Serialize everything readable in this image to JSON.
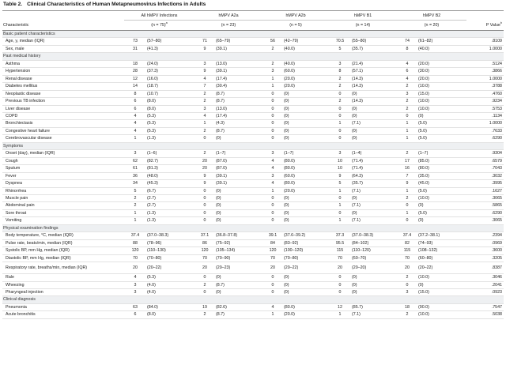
{
  "title": {
    "label": "Table 2.",
    "text": "Clinical Characteristics of Human Metapneumovirus Infections in Adults"
  },
  "groups": [
    "All hMPV Infections",
    "hMPV A2a",
    "hMPV A2b",
    "hMPV B1",
    "hMPV B2"
  ],
  "header": {
    "characteristic": "Characteristic",
    "n_all": "(n = 75)",
    "n_all_sup": "a",
    "n_a2a": "(n = 23)",
    "n_a2b": "(n = 5)",
    "n_b1": "(n = 14)",
    "n_b2": "(n = 20)",
    "pvalue": "P Value",
    "pvalue_sup": "b"
  },
  "rows": [
    {
      "section": "Basic patient characteristics"
    },
    {
      "name": "Age, y, median (IQR)",
      "v": [
        "73",
        "(57–80)",
        "71",
        "(65–79)",
        "56",
        "(42–79)",
        "70.5",
        "(55–80)",
        "74",
        "(61–82)"
      ],
      "p": ".8109"
    },
    {
      "name": "Sex, male",
      "v": [
        "31",
        "(41.3)",
        "9",
        "(39.1)",
        "2",
        "(40.0)",
        "5",
        "(35.7)",
        "8",
        "(40.0)"
      ],
      "p": "1.0000"
    },
    {
      "section": "Past medical history"
    },
    {
      "name": "Asthma",
      "v": [
        "18",
        "(24.0)",
        "3",
        "(13.0)",
        "2",
        "(40.0)",
        "3",
        "(21.4)",
        "4",
        "(20.0)"
      ],
      "p": ".5124"
    },
    {
      "name": "Hypertension",
      "v": [
        "28",
        "(37.3)",
        "9",
        "(39.1)",
        "3",
        "(60.0)",
        "8",
        "(57.1)",
        "6",
        "(30.0)"
      ],
      "p": ".3866"
    },
    {
      "name": "Renal disease",
      "v": [
        "12",
        "(16.0)",
        "4",
        "(17.4)",
        "1",
        "(20.0)",
        "2",
        "(14.3)",
        "4",
        "(20.0)"
      ],
      "p": "1.0000"
    },
    {
      "name": "Diabetes mellitus",
      "v": [
        "14",
        "(18.7)",
        "7",
        "(30.4)",
        "1",
        "(20.0)",
        "2",
        "(14.3)",
        "2",
        "(10.0)"
      ],
      "p": ".3788"
    },
    {
      "name": "Neoplastic disease",
      "v": [
        "8",
        "(10.7)",
        "2",
        "(8.7)",
        "0",
        "(0)",
        "0",
        "(0)",
        "3",
        "(15.0)"
      ],
      "p": ".4760"
    },
    {
      "name": "Previous TB infection",
      "v": [
        "6",
        "(8.0)",
        "2",
        "(8.7)",
        "0",
        "(0)",
        "2",
        "(14.3)",
        "2",
        "(10.0)"
      ],
      "p": ".9234"
    },
    {
      "name": "Liver disease",
      "v": [
        "6",
        "(8.0)",
        "3",
        "(13.0)",
        "0",
        "(0)",
        "0",
        "(0)",
        "2",
        "(10.0)"
      ],
      "p": ".5753"
    },
    {
      "name": "COPD",
      "v": [
        "4",
        "(5.3)",
        "4",
        "(17.4)",
        "0",
        "(0)",
        "0",
        "(0)",
        "0",
        "(0)"
      ],
      "p": ".1134"
    },
    {
      "name": "Bronchiectasis",
      "v": [
        "4",
        "(5.3)",
        "1",
        "(4.3)",
        "0",
        "(0)",
        "1",
        "(7.1)",
        "1",
        "(5.0)"
      ],
      "p": "1.0000"
    },
    {
      "name": "Congestive heart failure",
      "v": [
        "4",
        "(5.3)",
        "2",
        "(8.7)",
        "0",
        "(0)",
        "0",
        "(0)",
        "1",
        "(5.0)"
      ],
      "p": ".7633"
    },
    {
      "name": "Cerebrovascular disease",
      "v": [
        "1",
        "(1.3)",
        "0",
        "(0)",
        "0",
        "(0)",
        "0",
        "(0)",
        "1",
        "(5.0)"
      ],
      "p": ".6290"
    },
    {
      "section": "Symptoms"
    },
    {
      "name": "Onset (day), median (IQR)",
      "v": [
        "3",
        "(1–6)",
        "2",
        "(1–7)",
        "3",
        "(1–7)",
        "3",
        "(1–4)",
        "2",
        "(1–7)"
      ],
      "p": ".9304"
    },
    {
      "name": "Cough",
      "v": [
        "62",
        "(82.7)",
        "20",
        "(87.0)",
        "4",
        "(80.0)",
        "10",
        "(71.4)",
        "17",
        "(85.0)"
      ],
      "p": ".6579"
    },
    {
      "name": "Sputum",
      "v": [
        "61",
        "(81.3)",
        "20",
        "(87.0)",
        "4",
        "(80.0)",
        "10",
        "(71.4)",
        "16",
        "(80.0)"
      ],
      "p": ".7043"
    },
    {
      "name": "Fever",
      "v": [
        "36",
        "(48.0)",
        "9",
        "(39.1)",
        "3",
        "(60.0)",
        "9",
        "(64.3)",
        "7",
        "(35.0)"
      ],
      "p": ".3032"
    },
    {
      "name": "Dyspnea",
      "v": [
        "34",
        "(45.3)",
        "9",
        "(39.1)",
        "4",
        "(80.0)",
        "5",
        "(35.7)",
        "9",
        "(45.0)"
      ],
      "p": ".3995"
    },
    {
      "name": "Rhinorrhea",
      "v": [
        "5",
        "(6.7)",
        "0",
        "(0)",
        "1",
        "(20.0)",
        "1",
        "(7.1)",
        "1",
        "(5.0)"
      ],
      "p": ".1627"
    },
    {
      "name": "Muscle pain",
      "v": [
        "2",
        "(2.7)",
        "0",
        "(0)",
        "0",
        "(0)",
        "0",
        "(0)",
        "2",
        "(10.0)"
      ],
      "p": ".3065"
    },
    {
      "name": "Abdominal pain",
      "v": [
        "2",
        "(2.7)",
        "0",
        "(0)",
        "0",
        "(0)",
        "1",
        "(7.1)",
        "0",
        "(0)"
      ],
      "p": ".5865"
    },
    {
      "name": "Sore throat",
      "v": [
        "1",
        "(1.3)",
        "0",
        "(0)",
        "0",
        "(0)",
        "0",
        "(0)",
        "1",
        "(5.0)"
      ],
      "p": ".6290"
    },
    {
      "name": "Vomiting",
      "v": [
        "1",
        "(1.3)",
        "0",
        "(0)",
        "0",
        "(0)",
        "1",
        "(7.1)",
        "0",
        "(0)"
      ],
      "p": ".3065"
    },
    {
      "section": "Physical examination findings"
    },
    {
      "name": "Body temperature, °C, median (IQR)",
      "v": [
        "37.4",
        "(37.0–38.3)",
        "37.1",
        "(36.8–37.8)",
        "39.1",
        "(37.6–39.2)",
        "37.3",
        "(37.0–38.3)",
        "37.4",
        "(37.2–38.1)"
      ],
      "p": ".2394"
    },
    {
      "name": "Pulse rate, beats/min, median (IQR)",
      "v": [
        "88",
        "(78–96)",
        "86",
        "(75–92)",
        "84",
        "(83–92)",
        "95.5",
        "(84–102)",
        "82",
        "(74–93)"
      ],
      "p": ".0969"
    },
    {
      "name": "Systolic BP, mm Hg, median (IQR)",
      "v": [
        "120",
        "(110–130)",
        "120",
        "(105–134)",
        "120",
        "(100–120)",
        "115",
        "(110–120)",
        "115",
        "(108–132)"
      ],
      "p": ".3600"
    },
    {
      "name": "Diastolic BP, mm Hg, median (IQR)",
      "v": [
        "70",
        "(70–80)",
        "70",
        "(70–90)",
        "70",
        "(70–80)",
        "70",
        "(60–70)",
        "70",
        "(60–80)"
      ],
      "p": ".3205"
    },
    {
      "name": "Respiratory rate, breaths/min, median (IQR)",
      "tall": true,
      "v": [
        "20",
        "(20–22)",
        "20",
        "(20–23)",
        "20",
        "(20–22)",
        "20",
        "(20–20)",
        "20",
        "(20–22)"
      ],
      "p": ".8387"
    },
    {
      "name": "Rale",
      "v": [
        "4",
        "(5.3)",
        "0",
        "(0)",
        "0",
        "(0)",
        "0",
        "(0)",
        "2",
        "(10.0)"
      ],
      "p": ".3046"
    },
    {
      "name": "Wheezing",
      "v": [
        "3",
        "(4.0)",
        "2",
        "(8.7)",
        "0",
        "(0)",
        "0",
        "(0)",
        "0",
        "(0)"
      ],
      "p": ".2041"
    },
    {
      "name": "Pharyngeal injection",
      "v": [
        "3",
        "(4.0)",
        "0",
        "(0)",
        "0",
        "(0)",
        "0",
        "(0)",
        "3",
        "(15.0)"
      ],
      "p": ".0923"
    },
    {
      "section": "Clinical diagnosis"
    },
    {
      "name": "Pneumonia",
      "v": [
        "63",
        "(84.0)",
        "19",
        "(82.6)",
        "4",
        "(80.0)",
        "12",
        "(85.7)",
        "18",
        "(90.0)"
      ],
      "p": ".7547"
    },
    {
      "name": "Acute bronchitis",
      "v": [
        "6",
        "(8.0)",
        "2",
        "(8.7)",
        "1",
        "(20.0)",
        "1",
        "(7.1)",
        "2",
        "(10.0)"
      ],
      "p": ".5038"
    }
  ]
}
